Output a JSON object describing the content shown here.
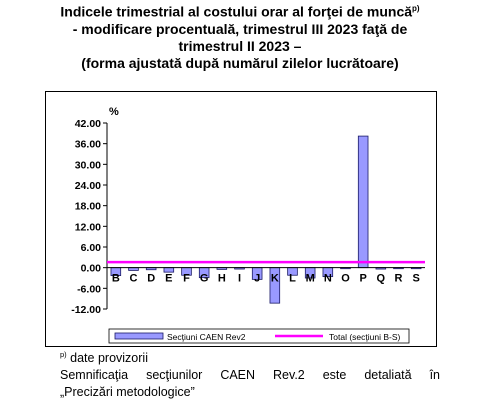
{
  "title": {
    "line1": "Indicele trimestrial al costului orar al forţei de muncă",
    "line1_sup": "p)",
    "line2": "- modificare procentuală, trimestrul III 2023 faţă de",
    "line3": "trimestrul II 2023 –",
    "line4": "(forma ajustată după numărul zilelor lucrătoare)"
  },
  "chart_data": {
    "type": "bar",
    "ylabel": "%",
    "ylim": [
      -12,
      42
    ],
    "yticks": [
      "42.00",
      "36.00",
      "30.00",
      "24.00",
      "18.00",
      "12.00",
      "6.00",
      "0.00",
      "-6.00",
      "-12.00"
    ],
    "ytick_values": [
      42,
      36,
      30,
      24,
      18,
      12,
      6,
      0,
      -6,
      -12
    ],
    "categories": [
      "B",
      "C",
      "D",
      "E",
      "F",
      "G",
      "H",
      "I",
      "J",
      "K",
      "L",
      "M",
      "N",
      "O",
      "P",
      "Q",
      "R",
      "S"
    ],
    "series": [
      {
        "name": "Secţiuni CAEN Rev2",
        "values": [
          -2.3,
          -0.8,
          -0.6,
          -1.3,
          -2.2,
          -2.9,
          -0.5,
          -0.4,
          -3.4,
          -10.3,
          -2.2,
          -3.0,
          -2.6,
          -0.3,
          38.2,
          -0.4,
          -0.3,
          -0.3
        ],
        "color": "#9999ff"
      },
      {
        "name": "Total (secţiuni B-S)",
        "value": 1.6,
        "color": "#ff00ff"
      }
    ],
    "grid": false,
    "legend": "bottom"
  },
  "footnote": {
    "sup": "p)",
    "line1": "date provizorii",
    "line2": "Semnificaţia secţiunilor CAEN Rev.2 este detaliată în",
    "line3": "„Precizări metodologice”"
  }
}
